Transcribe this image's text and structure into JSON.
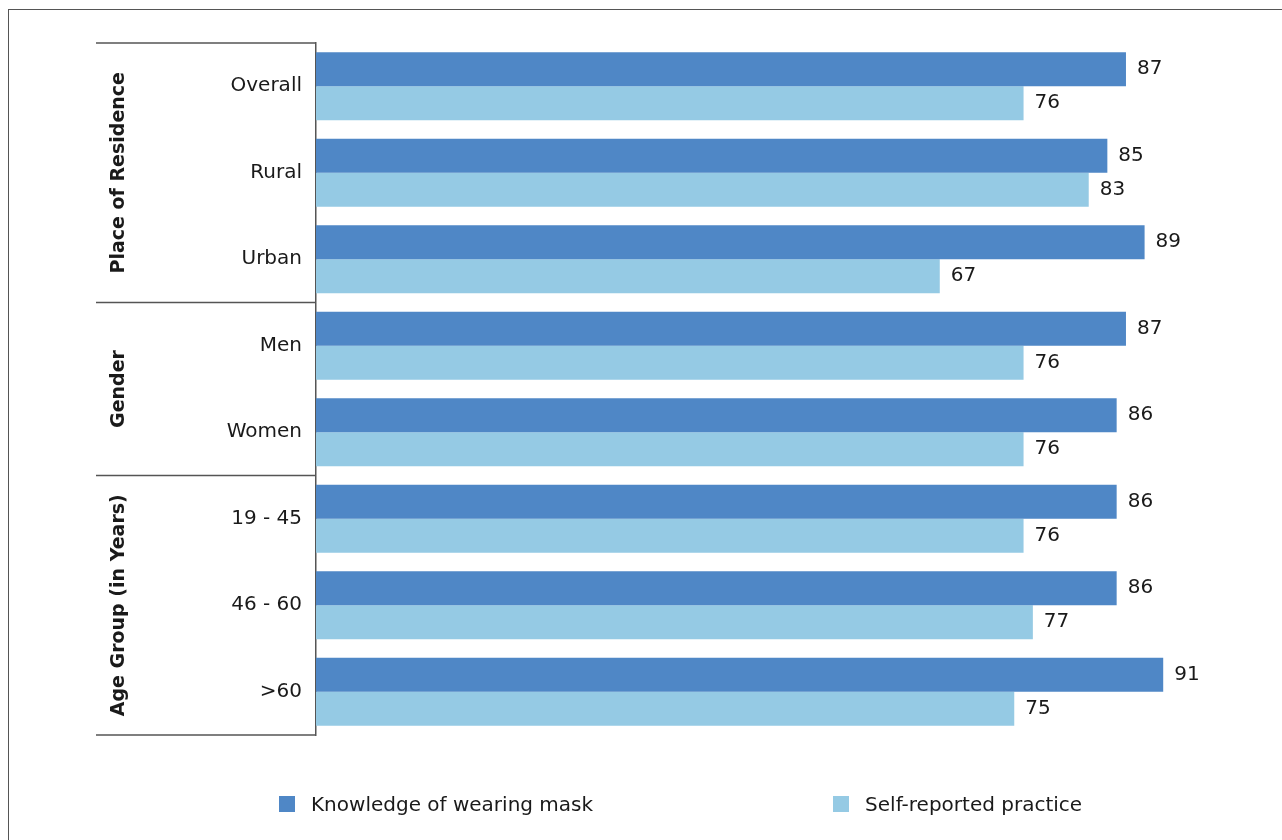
{
  "chart_data": {
    "type": "bar",
    "orientation": "horizontal",
    "categories": [
      "Overall",
      "Rural",
      "Urban",
      "Men",
      "Women",
      "19 - 45",
      "46 - 60",
      ">60"
    ],
    "series": [
      {
        "name": "Knowledge of wearing mask",
        "color": "#4f87c6",
        "values": [
          87,
          85,
          89,
          87,
          86,
          86,
          86,
          91
        ]
      },
      {
        "name": "Self-reported practice",
        "color": "#95cae4",
        "values": [
          76,
          83,
          67,
          76,
          76,
          76,
          77,
          75
        ]
      }
    ],
    "data_labels": true,
    "tick_labels": "y",
    "legend": "bottom",
    "annotations": [
      "Place of Residence",
      "Gender",
      "Age Group (in Years)"
    ]
  }
}
